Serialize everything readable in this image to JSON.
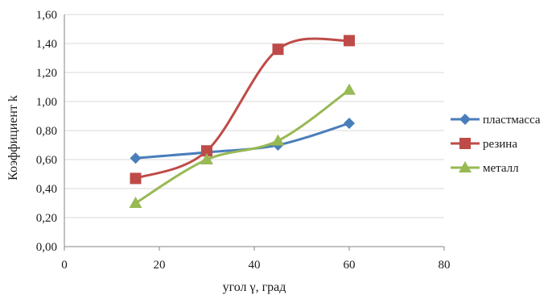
{
  "chart_data": {
    "type": "scatter",
    "title": "",
    "xlabel": "угол γ, град",
    "ylabel": "Коэффициент k",
    "xlim": [
      0,
      80
    ],
    "ylim": [
      0,
      1.6
    ],
    "x_ticks": [
      "0",
      "20",
      "40",
      "60",
      "80"
    ],
    "y_ticks": [
      "0,00",
      "0,20",
      "0,40",
      "0,60",
      "0,80",
      "1,00",
      "1,20",
      "1,40",
      "1,60"
    ],
    "grid": "horizontal",
    "legend_position": "right",
    "smooth_lines": true,
    "series": [
      {
        "name": "пластмасса",
        "color": "#4a7ebb",
        "marker": "diamond",
        "x": [
          15,
          30,
          45,
          60
        ],
        "y": [
          0.61,
          0.65,
          0.7,
          0.85
        ]
      },
      {
        "name": "резина",
        "color": "#be4b48",
        "marker": "square",
        "x": [
          15,
          30,
          45,
          60
        ],
        "y": [
          0.47,
          0.66,
          1.36,
          1.42
        ]
      },
      {
        "name": "металл",
        "color": "#98b954",
        "marker": "triangle",
        "x": [
          15,
          30,
          45,
          60
        ],
        "y": [
          0.3,
          0.6,
          0.73,
          1.08
        ]
      }
    ]
  }
}
